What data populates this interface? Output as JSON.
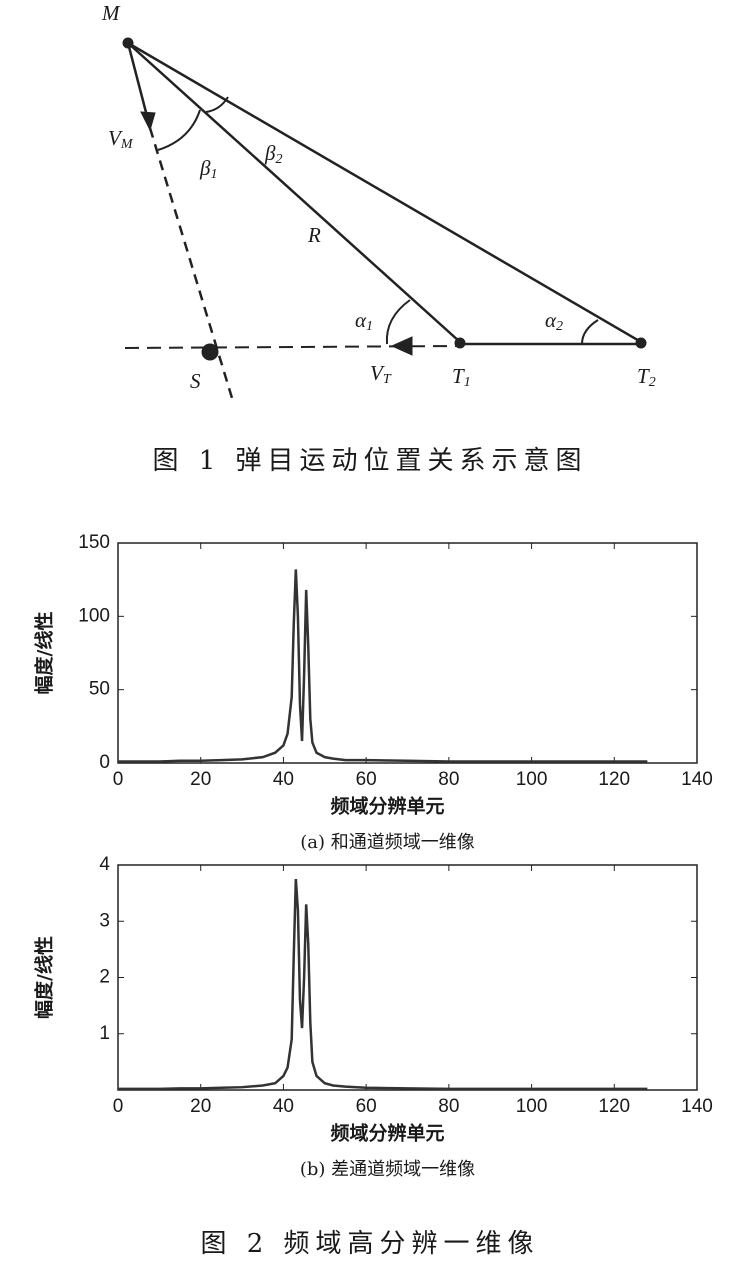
{
  "diagram": {
    "labels": [
      {
        "text": "M"
      },
      {
        "text": "V",
        "sub": "M"
      },
      {
        "text": "β",
        "sub": "1"
      },
      {
        "text": "β",
        "sub": "2"
      },
      {
        "text": "R"
      },
      {
        "text": "α",
        "sub": "1"
      },
      {
        "text": "α",
        "sub": "2"
      },
      {
        "text": "S"
      },
      {
        "text": "V",
        "sub": "T"
      },
      {
        "text": "T",
        "sub": "1"
      },
      {
        "text": "T",
        "sub": "2"
      }
    ],
    "caption": "图 1  弹目运动位置关系示意图"
  },
  "chart_data": [
    {
      "type": "line",
      "subtitle": "(a) 和通道频域一维像",
      "xlabel": "频域分辨单元",
      "ylabel": "幅度/线性",
      "xlim": [
        0,
        140
      ],
      "ylim": [
        0,
        150
      ],
      "xticks": [
        0,
        20,
        40,
        60,
        80,
        100,
        120,
        140
      ],
      "yticks": [
        0,
        50,
        100,
        150
      ],
      "series": [
        {
          "color": "#333333",
          "x": [
            0,
            5,
            10,
            15,
            20,
            25,
            30,
            35,
            38,
            40,
            41,
            42,
            42.5,
            43,
            43.5,
            44,
            44.5,
            45,
            45.5,
            46,
            46.5,
            47,
            48,
            50,
            52,
            55,
            60,
            70,
            80,
            90,
            100,
            110,
            120,
            128
          ],
          "values": [
            1,
            1,
            1,
            1.5,
            1.5,
            2,
            2.5,
            4,
            7,
            12,
            20,
            45,
            95,
            132,
            100,
            40,
            15,
            60,
            118,
            80,
            30,
            14,
            7,
            4,
            3,
            2,
            2,
            1.5,
            1,
            1,
            1,
            1,
            1,
            1
          ]
        }
      ]
    },
    {
      "type": "line",
      "subtitle": "(b) 差通道频域一维像",
      "xlabel": "频域分辨单元",
      "ylabel": "幅度/线性",
      "xlim": [
        0,
        140
      ],
      "ylim": [
        0,
        4
      ],
      "xticks": [
        0,
        20,
        40,
        60,
        80,
        100,
        120,
        140
      ],
      "yticks": [
        1,
        2,
        3,
        4
      ],
      "series": [
        {
          "color": "#333333",
          "x": [
            0,
            5,
            10,
            15,
            20,
            25,
            30,
            35,
            38,
            40,
            41,
            42,
            42.5,
            43,
            43.5,
            44,
            44.5,
            45,
            45.5,
            46,
            46.5,
            47,
            48,
            50,
            52,
            55,
            60,
            70,
            80,
            90,
            100,
            110,
            120,
            128
          ],
          "values": [
            0.02,
            0.02,
            0.02,
            0.03,
            0.03,
            0.04,
            0.05,
            0.08,
            0.12,
            0.25,
            0.4,
            0.9,
            2.4,
            3.75,
            3.2,
            1.6,
            1.1,
            2.0,
            3.3,
            2.6,
            1.2,
            0.5,
            0.25,
            0.12,
            0.08,
            0.06,
            0.04,
            0.03,
            0.02,
            0.02,
            0.02,
            0.02,
            0.02,
            0.02
          ]
        }
      ]
    }
  ],
  "caption": "图 2  频域高分辨一维像"
}
